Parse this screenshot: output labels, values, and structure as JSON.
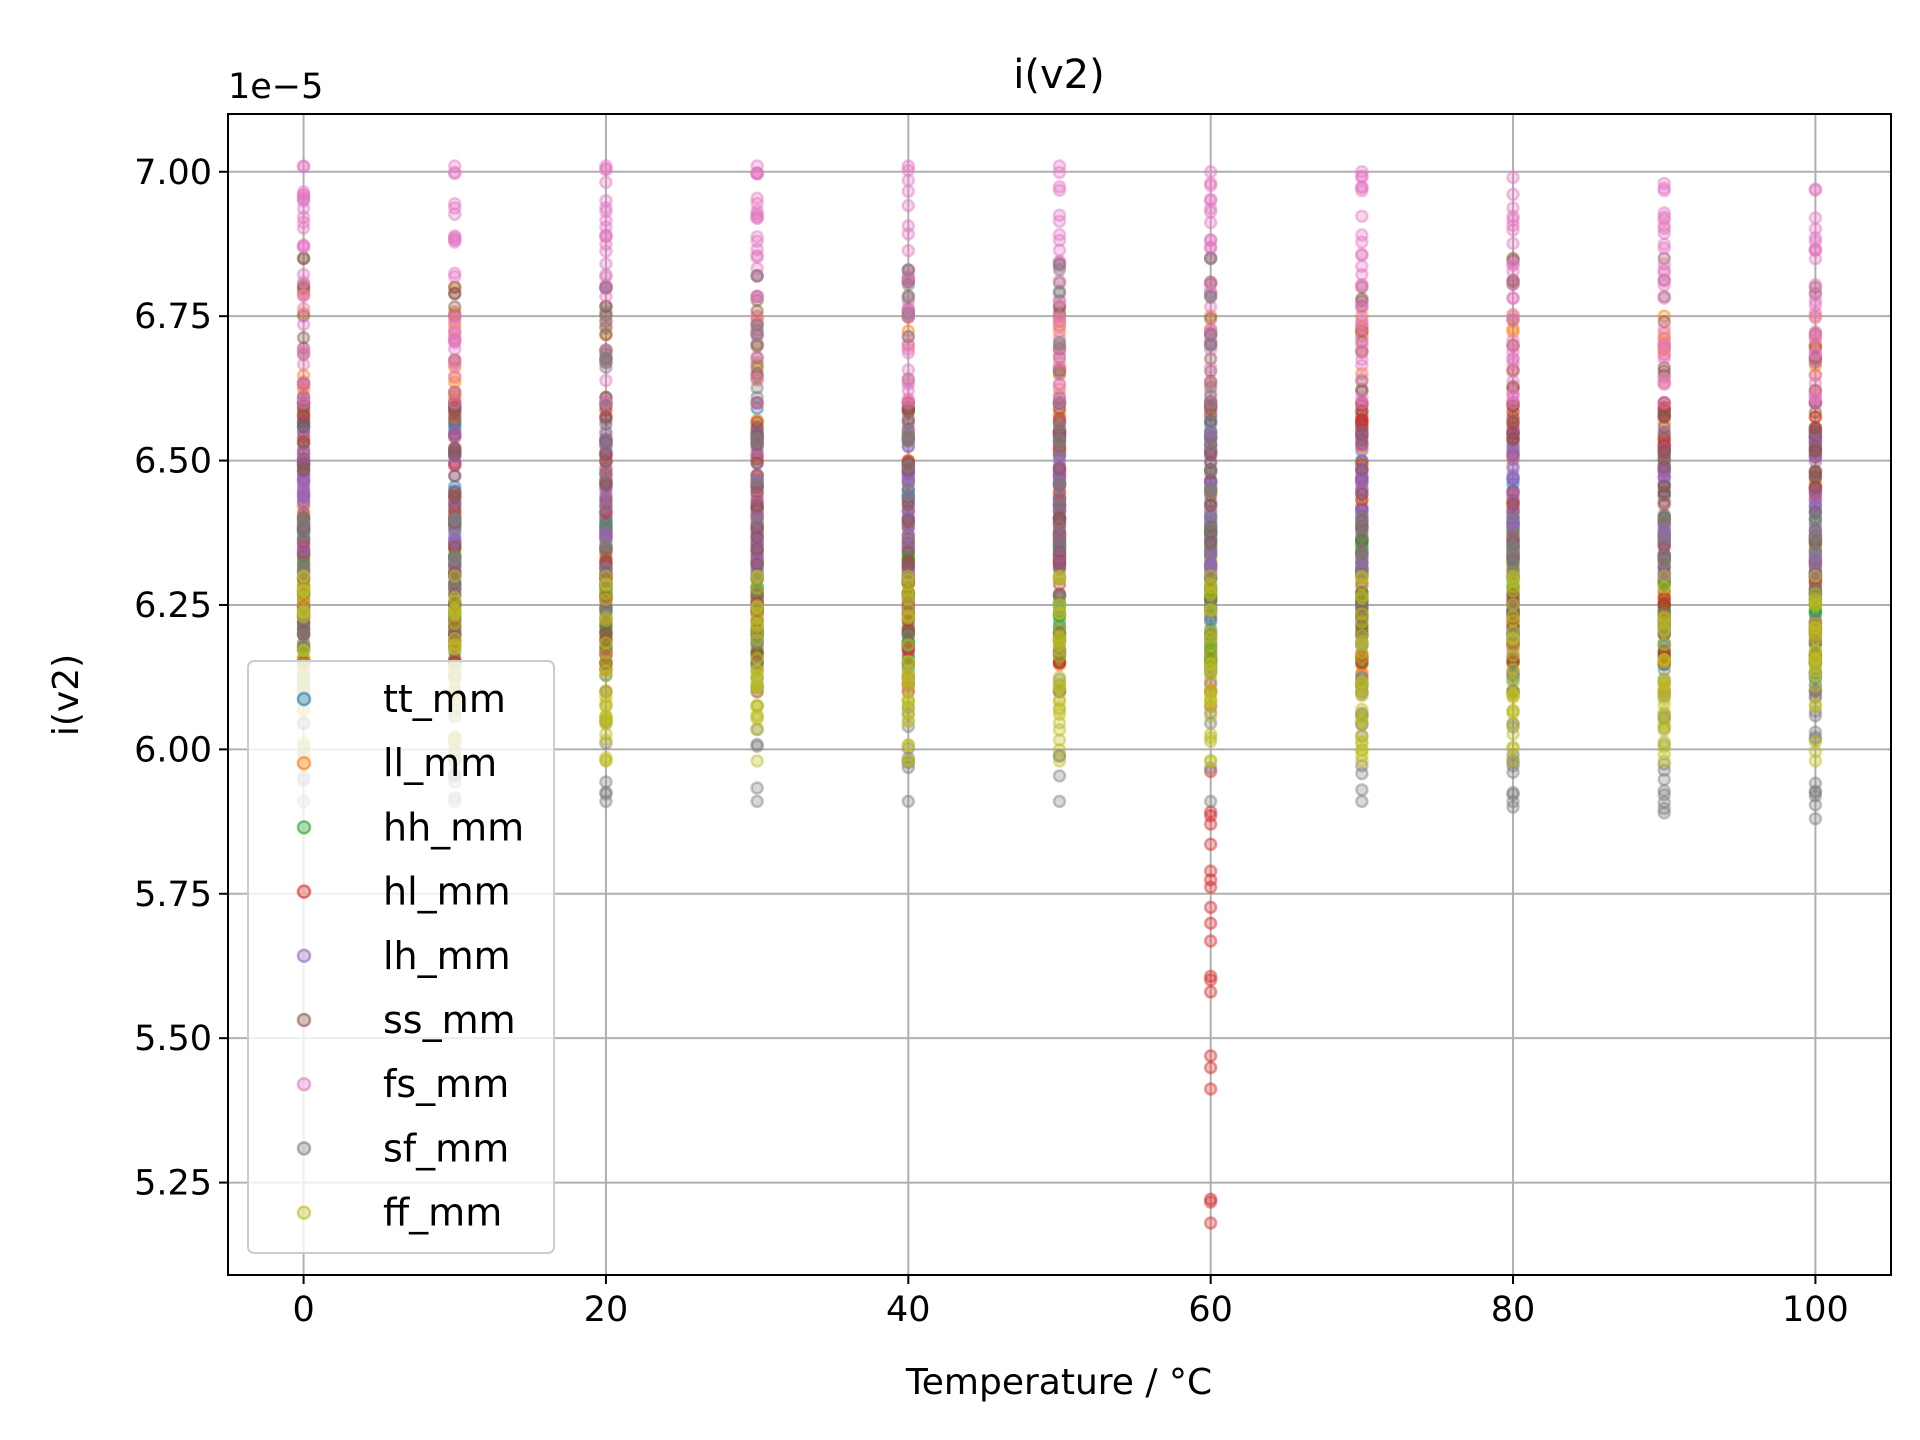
{
  "chart_data": {
    "type": "scatter",
    "title": "i(v2)",
    "xlabel": "Temperature / °C",
    "ylabel": "i(v2)",
    "offset_text": "1e−5",
    "xlim": [
      -5,
      105
    ],
    "ylim": [
      5.09,
      7.1
    ],
    "y_multiplier": 1e-05,
    "xticks": [
      0,
      20,
      40,
      60,
      80,
      100
    ],
    "xtick_labels": [
      "0",
      "20",
      "40",
      "60",
      "80",
      "100"
    ],
    "yticks": [
      5.25,
      5.5,
      5.75,
      6.0,
      6.25,
      6.5,
      6.75,
      7.0
    ],
    "ytick_labels": [
      "5.25",
      "5.50",
      "5.75",
      "6.00",
      "6.25",
      "6.50",
      "6.75",
      "7.00"
    ],
    "grid": true,
    "legend_position": "lower-left",
    "x": [
      0,
      10,
      20,
      30,
      40,
      50,
      60,
      70,
      80,
      90,
      100
    ],
    "series": [
      {
        "name": "tt_mm",
        "color": "#1f77b4",
        "ranges": [
          [
            6.1,
            6.6
          ],
          [
            6.1,
            6.6
          ],
          [
            6.1,
            6.6
          ],
          [
            6.1,
            6.6
          ],
          [
            6.1,
            6.6
          ],
          [
            6.1,
            6.6
          ],
          [
            6.1,
            6.6
          ],
          [
            6.1,
            6.6
          ],
          [
            6.1,
            6.6
          ],
          [
            6.1,
            6.6
          ],
          [
            6.1,
            6.6
          ]
        ]
      },
      {
        "name": "ll_mm",
        "color": "#ff7f0e",
        "ranges": [
          [
            6.1,
            6.8
          ],
          [
            6.1,
            6.8
          ],
          [
            6.1,
            6.75
          ],
          [
            6.1,
            6.75
          ],
          [
            6.1,
            6.75
          ],
          [
            6.1,
            6.75
          ],
          [
            6.1,
            6.75
          ],
          [
            6.1,
            6.75
          ],
          [
            6.1,
            6.75
          ],
          [
            6.1,
            6.75
          ],
          [
            6.1,
            6.75
          ]
        ]
      },
      {
        "name": "hh_mm",
        "color": "#2ca02c",
        "ranges": [
          [
            6.15,
            6.4
          ],
          [
            6.15,
            6.4
          ],
          [
            6.15,
            6.4
          ],
          [
            6.15,
            6.4
          ],
          [
            6.15,
            6.4
          ],
          [
            6.15,
            6.4
          ],
          [
            6.15,
            6.4
          ],
          [
            6.15,
            6.4
          ],
          [
            6.15,
            6.4
          ],
          [
            6.15,
            6.4
          ],
          [
            6.15,
            6.4
          ]
        ]
      },
      {
        "name": "hl_mm",
        "color": "#d62728",
        "ranges": [
          [
            6.15,
            6.6
          ],
          [
            6.15,
            6.6
          ],
          [
            6.15,
            6.6
          ],
          [
            6.15,
            6.6
          ],
          [
            6.15,
            6.6
          ],
          [
            6.15,
            6.6
          ],
          [
            5.18,
            6.6
          ],
          [
            6.15,
            6.6
          ],
          [
            6.15,
            6.6
          ],
          [
            6.15,
            6.6
          ],
          [
            6.15,
            6.6
          ]
        ]
      },
      {
        "name": "lh_mm",
        "color": "#9467bd",
        "ranges": [
          [
            6.3,
            6.55
          ],
          [
            6.3,
            6.55
          ],
          [
            6.3,
            6.55
          ],
          [
            6.3,
            6.55
          ],
          [
            6.3,
            6.55
          ],
          [
            6.3,
            6.55
          ],
          [
            6.3,
            6.55
          ],
          [
            6.3,
            6.55
          ],
          [
            6.3,
            6.55
          ],
          [
            6.3,
            6.55
          ],
          [
            6.3,
            6.55
          ]
        ]
      },
      {
        "name": "ss_mm",
        "color": "#8c564b",
        "ranges": [
          [
            6.2,
            6.85
          ],
          [
            6.2,
            6.8
          ],
          [
            6.2,
            6.8
          ],
          [
            6.2,
            6.82
          ],
          [
            6.2,
            6.83
          ],
          [
            6.2,
            6.84
          ],
          [
            6.2,
            6.85
          ],
          [
            6.2,
            6.8
          ],
          [
            6.2,
            6.85
          ],
          [
            6.2,
            6.85
          ],
          [
            6.2,
            6.8
          ]
        ]
      },
      {
        "name": "fs_mm",
        "color": "#e377c2",
        "ranges": [
          [
            6.6,
            7.01
          ],
          [
            6.6,
            7.01
          ],
          [
            6.6,
            7.01
          ],
          [
            6.6,
            7.01
          ],
          [
            6.6,
            7.01
          ],
          [
            6.6,
            7.01
          ],
          [
            6.6,
            7.0
          ],
          [
            6.6,
            7.0
          ],
          [
            6.6,
            6.99
          ],
          [
            6.6,
            6.98
          ],
          [
            6.6,
            6.97
          ]
        ]
      },
      {
        "name": "sf_mm",
        "color": "#7f7f7f",
        "ranges": [
          [
            5.91,
            6.4
          ],
          [
            5.91,
            6.4
          ],
          [
            5.91,
            6.8
          ],
          [
            5.91,
            6.82
          ],
          [
            5.91,
            6.83
          ],
          [
            5.91,
            6.84
          ],
          [
            5.91,
            6.85
          ],
          [
            5.91,
            6.4
          ],
          [
            5.9,
            6.4
          ],
          [
            5.89,
            6.4
          ],
          [
            5.88,
            6.4
          ]
        ]
      },
      {
        "name": "ff_mm",
        "color": "#bcbd22",
        "ranges": [
          [
            5.98,
            6.3
          ],
          [
            5.98,
            6.3
          ],
          [
            5.98,
            6.3
          ],
          [
            5.98,
            6.3
          ],
          [
            5.98,
            6.3
          ],
          [
            5.98,
            6.3
          ],
          [
            5.98,
            6.3
          ],
          [
            5.98,
            6.3
          ],
          [
            5.98,
            6.3
          ],
          [
            5.98,
            6.3
          ],
          [
            5.98,
            6.3
          ]
        ]
      }
    ]
  }
}
